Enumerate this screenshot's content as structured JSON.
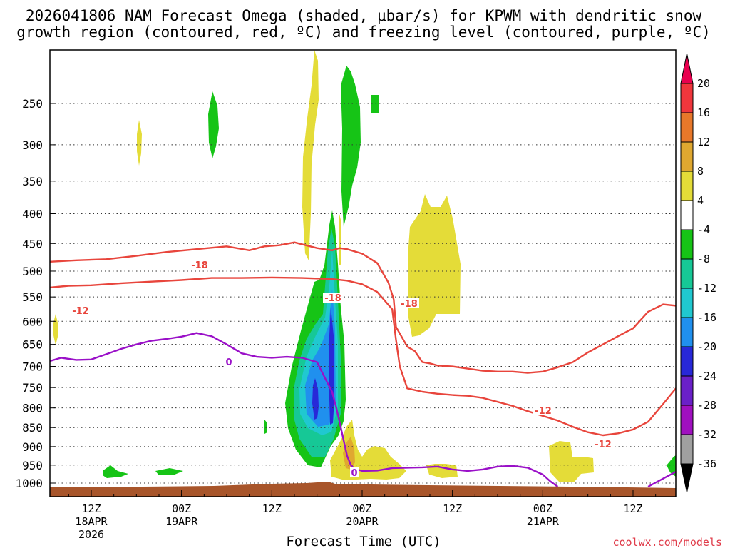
{
  "chart_data": {
    "type": "contour",
    "title_line1": "2026041806 NAM Forecast Omega (shaded, μbar/s) for KPWM with dendritic snow",
    "title_line2": "growth region (contoured, red, ºC) and freezing level (contoured, purple, ºC)",
    "xlabel": "Forecast Time (UTC)",
    "ylabel": "",
    "y_ticks": [
      "250",
      "300",
      "350",
      "400",
      "450",
      "500",
      "550",
      "600",
      "650",
      "700",
      "750",
      "800",
      "850",
      "900",
      "950",
      "1000"
    ],
    "y_tick_values": [
      250,
      300,
      350,
      400,
      450,
      500,
      550,
      600,
      650,
      700,
      750,
      800,
      850,
      900,
      950,
      1000
    ],
    "ylim": [
      200,
      1015
    ],
    "xlim": [
      0,
      84
    ],
    "x_ticks": [
      {
        "hour": 6,
        "label": "12Z",
        "sub1": "18APR",
        "sub2": "2026"
      },
      {
        "hour": 18,
        "label": "00Z",
        "sub1": "19APR",
        "sub2": ""
      },
      {
        "hour": 30,
        "label": "12Z",
        "sub1": "",
        "sub2": ""
      },
      {
        "hour": 42,
        "label": "00Z",
        "sub1": "20APR",
        "sub2": ""
      },
      {
        "hour": 54,
        "label": "12Z",
        "sub1": "",
        "sub2": ""
      },
      {
        "hour": 66,
        "label": "00Z",
        "sub1": "21APR",
        "sub2": ""
      },
      {
        "hour": 78,
        "label": "12Z",
        "sub1": "",
        "sub2": ""
      }
    ],
    "colorbar": {
      "labels": [
        "20",
        "16",
        "12",
        "8",
        "4",
        "-4",
        "-8",
        "-12",
        "-16",
        "-20",
        "-24",
        "-28",
        "-32",
        "-36"
      ],
      "colors": [
        "#e8004f",
        "#f0363c",
        "#e8782a",
        "#e0a830",
        "#e4dc38",
        "#ffffff",
        "#16c416",
        "#16c896",
        "#20c8d0",
        "#2090ee",
        "#2828d8",
        "#6a20c8",
        "#a010c0",
        "#a0a0a0",
        "#000000"
      ]
    },
    "contour_labels": [
      {
        "text": "-18",
        "color": "#e8453c"
      },
      {
        "text": "-12",
        "color": "#e8453c"
      },
      {
        "text": "-18",
        "color": "#e8453c"
      },
      {
        "text": "-18",
        "color": "#e8453c"
      },
      {
        "text": "-12",
        "color": "#e8453c"
      },
      {
        "text": "-12",
        "color": "#e8453c"
      },
      {
        "text": "0",
        "color": "#9a10c8"
      },
      {
        "text": "0",
        "color": "#9a10c8"
      }
    ],
    "series": [
      {
        "name": "dendritic -18C",
        "color": "#e8453c",
        "x": [
          0,
          4,
          8,
          12,
          16,
          20,
          24,
          27,
          29,
          31,
          33,
          36,
          38,
          39,
          40,
          42,
          44,
          45.5,
          46.2,
          46.5,
          48,
          49,
          50,
          51,
          52,
          54,
          56,
          58,
          60,
          62,
          64,
          66,
          68,
          70,
          72,
          74,
          76,
          78,
          80,
          82,
          84
        ],
        "y": [
          483,
          480,
          478,
          472,
          465,
          460,
          455,
          462,
          455,
          453,
          448,
          458,
          462,
          458,
          460,
          468,
          485,
          522,
          555,
          612,
          655,
          665,
          690,
          693,
          698,
          700,
          705,
          710,
          712,
          712,
          715,
          712,
          702,
          690,
          668,
          650,
          632,
          615,
          580,
          565,
          568
        ]
      },
      {
        "name": "dendritic -12C",
        "color": "#e8453c",
        "x": [
          0,
          3,
          6,
          10,
          14,
          18,
          22,
          26,
          30,
          34,
          38,
          40,
          42,
          44,
          46,
          46.5,
          47,
          48,
          50,
          52,
          54,
          56,
          58,
          60,
          62,
          64,
          66,
          68,
          70,
          72,
          74,
          76,
          78,
          80,
          82,
          84
        ],
        "y": [
          532,
          528,
          527,
          523,
          520,
          517,
          513,
          513,
          512,
          513,
          515,
          518,
          525,
          540,
          575,
          640,
          700,
          752,
          760,
          765,
          768,
          770,
          775,
          785,
          795,
          808,
          820,
          832,
          848,
          862,
          870,
          865,
          855,
          835,
          790,
          745
        ]
      },
      {
        "name": "freezing level 0C",
        "color": "#9a10c8",
        "x": [
          0,
          2,
          4,
          6,
          8,
          10,
          12,
          14,
          16,
          18,
          20,
          22,
          24,
          26,
          28,
          30,
          32,
          34,
          36,
          37,
          38,
          38.5,
          39,
          39.5,
          40,
          40.5,
          41,
          42,
          44,
          46,
          48,
          50,
          52,
          54,
          56,
          58,
          60,
          62,
          64,
          66,
          67,
          68
        ],
        "y": [
          690,
          680,
          685,
          684,
          672,
          660,
          650,
          642,
          638,
          633,
          625,
          632,
          650,
          670,
          678,
          680,
          678,
          680,
          690,
          725,
          760,
          795,
          835,
          880,
          925,
          950,
          960,
          966,
          965,
          958,
          957,
          956,
          954,
          962,
          966,
          962,
          954,
          952,
          957,
          976,
          995,
          1010
        ]
      }
    ]
  },
  "credit": "coolwx.com/models"
}
